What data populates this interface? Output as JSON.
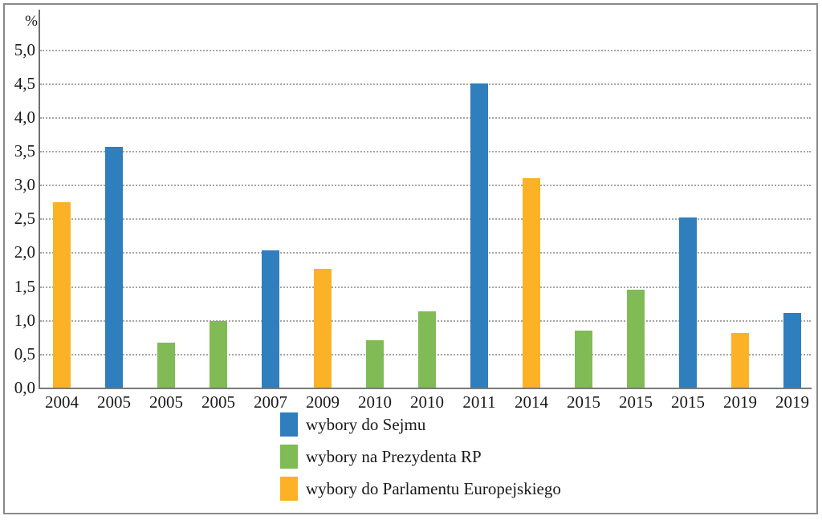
{
  "chart_data": {
    "type": "bar",
    "title": "",
    "ylabel": "%",
    "xlabel": "",
    "ylim": [
      0,
      5
    ],
    "ytick_step": 0.5,
    "ytick_labels": [
      "0,0",
      "0,5",
      "1,0",
      "1,5",
      "2,0",
      "2,5",
      "3,0",
      "3,5",
      "4,0",
      "4,5",
      "5,0"
    ],
    "grid": "horizontal-dotted",
    "legend_position": "bottom",
    "series": [
      {
        "name": "wybory do Sejmu",
        "color": "#2F7EBE"
      },
      {
        "name": "wybory na Prezydenta RP",
        "color": "#80BB56"
      },
      {
        "name": "wybory do Parlamentu Europejskiego",
        "color": "#FBB226"
      }
    ],
    "bars": [
      {
        "year": "2004",
        "series": "wybory do Parlamentu Europejskiego",
        "value": 2.74
      },
      {
        "year": "2005",
        "series": "wybory do Sejmu",
        "value": 3.56
      },
      {
        "year": "2005",
        "series": "wybory na Prezydenta RP",
        "value": 0.66
      },
      {
        "year": "2005",
        "series": "wybory na Prezydenta RP",
        "value": 0.98
      },
      {
        "year": "2007",
        "series": "wybory do Sejmu",
        "value": 2.03
      },
      {
        "year": "2009",
        "series": "wybory do Parlamentu Europejskiego",
        "value": 1.75
      },
      {
        "year": "2010",
        "series": "wybory na Prezydenta RP",
        "value": 0.7
      },
      {
        "year": "2010",
        "series": "wybory na Prezydenta RP",
        "value": 1.13
      },
      {
        "year": "2011",
        "series": "wybory do Sejmu",
        "value": 4.49
      },
      {
        "year": "2014",
        "series": "wybory do Parlamentu Europejskiego",
        "value": 3.1
      },
      {
        "year": "2015",
        "series": "wybory na Prezydenta RP",
        "value": 0.84
      },
      {
        "year": "2015",
        "series": "wybory na Prezydenta RP",
        "value": 1.45
      },
      {
        "year": "2015",
        "series": "wybory do Sejmu",
        "value": 2.52
      },
      {
        "year": "2019",
        "series": "wybory do Parlamentu Europejskiego",
        "value": 0.81
      },
      {
        "year": "2019",
        "series": "wybory do Sejmu",
        "value": 1.1
      }
    ],
    "colors": {
      "frame_border": "#8a8a8a",
      "axis_line": "#6f6f6f",
      "gridline": "#a6a6a6",
      "text": "#1a1a1a"
    }
  }
}
